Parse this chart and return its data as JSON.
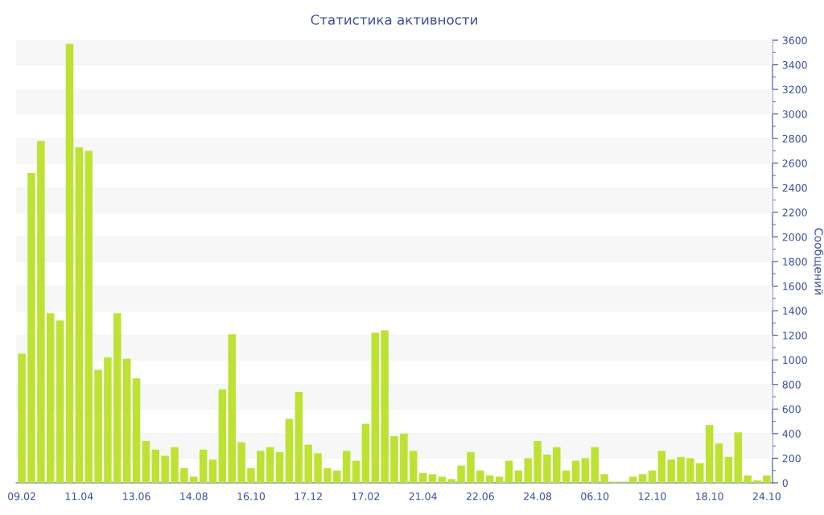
{
  "chart_data": {
    "type": "bar",
    "title": "Статистика активности",
    "ylabel": "Сообщений",
    "categories": [
      "09.02",
      null,
      null,
      null,
      null,
      null,
      "11.04",
      null,
      null,
      null,
      null,
      null,
      "13.06",
      null,
      null,
      null,
      null,
      null,
      "14.08",
      null,
      null,
      null,
      null,
      null,
      "16.10",
      null,
      null,
      null,
      null,
      null,
      "17.12",
      null,
      null,
      null,
      null,
      null,
      "17.02",
      null,
      null,
      null,
      null,
      null,
      "21.04",
      null,
      null,
      null,
      null,
      null,
      "22.06",
      null,
      null,
      null,
      null,
      null,
      "24.08",
      null,
      null,
      null,
      null,
      null,
      "06.10",
      null,
      null,
      null,
      null,
      null,
      "12.10",
      null,
      null,
      null,
      null,
      null,
      "18.10",
      null,
      null,
      null,
      null,
      null,
      "24.10"
    ],
    "values": [
      1050,
      2520,
      2780,
      1380,
      1320,
      3570,
      2730,
      2700,
      920,
      1020,
      1380,
      1010,
      850,
      340,
      270,
      220,
      290,
      120,
      50,
      270,
      190,
      760,
      1210,
      330,
      120,
      260,
      290,
      250,
      520,
      740,
      310,
      240,
      120,
      100,
      260,
      180,
      480,
      1220,
      1240,
      380,
      400,
      260,
      80,
      70,
      50,
      30,
      140,
      250,
      100,
      60,
      50,
      180,
      100,
      200,
      340,
      230,
      290,
      100,
      180,
      200,
      290,
      70,
      10,
      10,
      50,
      70,
      100,
      260,
      190,
      210,
      200,
      160,
      470,
      320,
      210,
      410,
      60,
      20,
      60
    ],
    "color": "#bde232",
    "ylim": [
      0,
      3600
    ],
    "yticks": [
      0,
      200,
      400,
      600,
      800,
      1000,
      1200,
      1400,
      1600,
      1800,
      2000,
      2200,
      2400,
      2600,
      2800,
      3000,
      3200,
      3400,
      3600
    ],
    "grid": "y"
  }
}
